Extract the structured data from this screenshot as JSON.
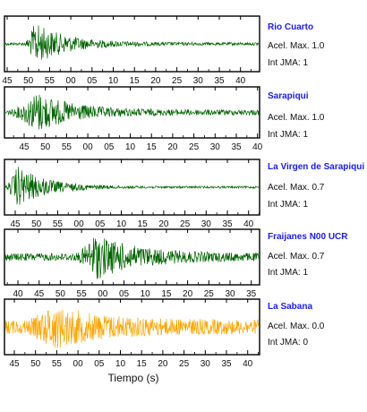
{
  "chart_data": [
    {
      "type": "line",
      "station": "Rio Cuarto",
      "accel_label": "Acel. Max. 1.0",
      "jma_label": "Int JMA: 1",
      "color": "#006400",
      "tick_labels": [
        "45",
        "50",
        "55",
        "00",
        "05",
        "10",
        "15",
        "20",
        "25",
        "30",
        "35",
        "40"
      ],
      "signal": {
        "onset_tick": 0.8,
        "peak_tick": 1.3,
        "duration_ticks": 4.5,
        "amplitude": 0.85,
        "noise": 0.06
      }
    },
    {
      "type": "line",
      "station": "Sarapiqui",
      "accel_label": "Acel. Max. 1.0",
      "jma_label": "Int JMA: 1",
      "color": "#006400",
      "tick_labels": [
        "45",
        "50",
        "55",
        "00",
        "05",
        "10",
        "15",
        "20",
        "25",
        "30",
        "35",
        "40"
      ],
      "signal": {
        "onset_tick": -0.7,
        "peak_tick": 0.6,
        "duration_ticks": 5,
        "amplitude": 0.92,
        "noise": 0.12
      }
    },
    {
      "type": "line",
      "station": "La Virgen de Sarapiqui",
      "accel_label": "Acel. Max. 0.7",
      "jma_label": "Int JMA: 1",
      "color": "#006400",
      "tick_labels": [
        "45",
        "50",
        "55",
        "00",
        "05",
        "10",
        "15",
        "20",
        "25",
        "30",
        "35",
        "40"
      ],
      "signal": {
        "onset_tick": -0.5,
        "peak_tick": 0.1,
        "duration_ticks": 4,
        "amplitude": 0.85,
        "noise": 0.04
      }
    },
    {
      "type": "line",
      "station": "Fraijanes N00 UCR",
      "accel_label": "Acel. Max. 0.7",
      "jma_label": "Int JMA: 1",
      "color": "#006400",
      "tick_labels": [
        "40",
        "45",
        "50",
        "55",
        "00",
        "05",
        "10",
        "15",
        "20",
        "25",
        "30",
        "35"
      ],
      "signal": {
        "onset_tick": 2.7,
        "peak_tick": 3.6,
        "duration_ticks": 6,
        "amplitude": 0.95,
        "noise": 0.15
      }
    },
    {
      "type": "line",
      "station": "La Sabana",
      "accel_label": "Acel. Max. 0.0",
      "jma_label": "Int JMA: 0",
      "color": "#FFA500",
      "tick_labels": [
        "45",
        "50",
        "55",
        "00",
        "05",
        "10",
        "15",
        "20",
        "25",
        "30",
        "35",
        "40"
      ],
      "signal": {
        "onset_tick": 0.5,
        "peak_tick": 1.8,
        "duration_ticks": 7,
        "amplitude": 0.92,
        "noise": 0.28
      }
    }
  ],
  "xlabel": "Tiempo (s)"
}
